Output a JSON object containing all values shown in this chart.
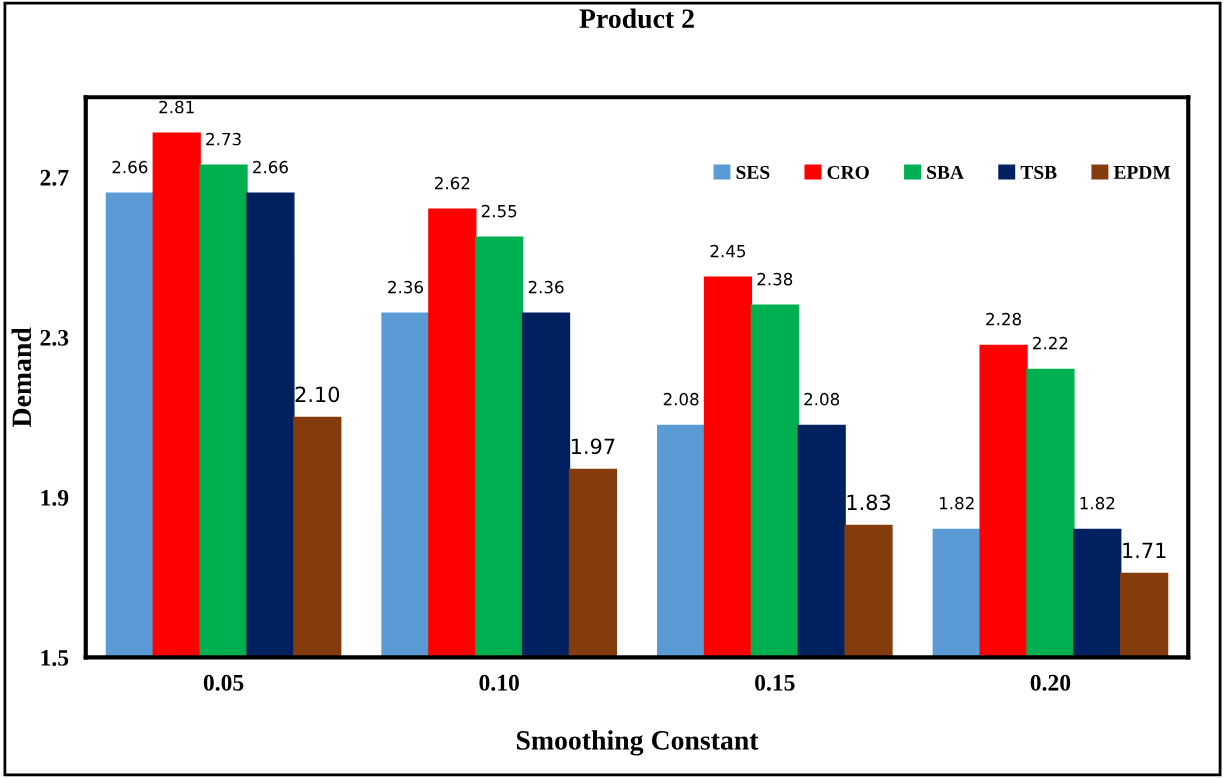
{
  "chart_data": {
    "type": "bar",
    "title": "Product 2",
    "xlabel": "Smoothing Constant",
    "ylabel": "Demand",
    "categories": [
      "0.05",
      "0.10",
      "0.15",
      "0.20"
    ],
    "series": [
      {
        "name": "SES",
        "color": "#5b9bd5",
        "values": [
          2.66,
          2.36,
          2.08,
          1.82
        ],
        "value_labels": [
          "2.66",
          "2.36",
          "2.08",
          "1.82"
        ]
      },
      {
        "name": "CRO",
        "color": "#ff0000",
        "values": [
          2.81,
          2.62,
          2.45,
          2.28
        ],
        "value_labels": [
          "2.81",
          "2.62",
          "2.45",
          "2.28"
        ]
      },
      {
        "name": "SBA",
        "color": "#00b050",
        "values": [
          2.73,
          2.55,
          2.38,
          2.22
        ],
        "value_labels": [
          "2.73",
          "2.55",
          "2.38",
          "2.22"
        ]
      },
      {
        "name": "TSB",
        "color": "#002060",
        "values": [
          2.66,
          2.36,
          2.08,
          1.82
        ],
        "value_labels": [
          "2.66",
          "2.36",
          "2.08",
          "1.82"
        ]
      },
      {
        "name": "EPDM",
        "color": "#843c0c",
        "values": [
          2.1,
          1.97,
          1.83,
          1.71
        ],
        "value_labels": [
          "2.10",
          "1.97",
          "1.83",
          "1.71"
        ]
      }
    ],
    "ylim": [
      1.5,
      2.9
    ],
    "yticks": [
      1.5,
      1.9,
      2.3,
      2.7
    ],
    "legend": "top right",
    "grid": false
  }
}
